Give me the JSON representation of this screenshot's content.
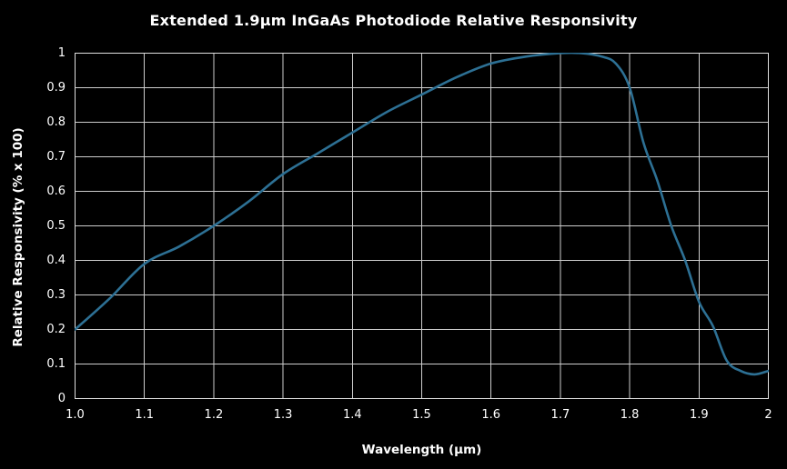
{
  "title": "Extended 1.9µm InGaAs Photodiode Relative Responsivity",
  "chart_data": {
    "type": "line",
    "title": "Extended 1.9µm InGaAs Photodiode Relative Responsivity",
    "xlabel": "Wavelength (µm)",
    "ylabel": "Relative Responsivity (% x 100)",
    "xlim": [
      1.0,
      2.0
    ],
    "ylim": [
      0,
      1
    ],
    "grid": true,
    "legend": "none",
    "x_ticks": [
      {
        "value": 1.0,
        "label": "1.0"
      },
      {
        "value": 1.1,
        "label": "1.1"
      },
      {
        "value": 1.2,
        "label": "1.2"
      },
      {
        "value": 1.3,
        "label": "1.3"
      },
      {
        "value": 1.4,
        "label": "1.4"
      },
      {
        "value": 1.5,
        "label": "1.5"
      },
      {
        "value": 1.6,
        "label": "1.6"
      },
      {
        "value": 1.7,
        "label": "1.7"
      },
      {
        "value": 1.8,
        "label": "1.8"
      },
      {
        "value": 1.9,
        "label": "1.9"
      },
      {
        "value": 2.0,
        "label": "2"
      }
    ],
    "y_ticks": [
      {
        "value": 0.0,
        "label": "0"
      },
      {
        "value": 0.1,
        "label": "0.1"
      },
      {
        "value": 0.2,
        "label": "0.2"
      },
      {
        "value": 0.3,
        "label": "0.3"
      },
      {
        "value": 0.4,
        "label": "0.4"
      },
      {
        "value": 0.5,
        "label": "0.5"
      },
      {
        "value": 0.6,
        "label": "0.6"
      },
      {
        "value": 0.7,
        "label": "0.7"
      },
      {
        "value": 0.8,
        "label": "0.8"
      },
      {
        "value": 0.9,
        "label": "0.9"
      },
      {
        "value": 1.0,
        "label": "1"
      }
    ],
    "colors": {
      "background": "#000000",
      "text": "#ffffff",
      "grid": "#cdcdcd",
      "frame": "#e0e0e0",
      "line": "#2d7094"
    },
    "series": [
      {
        "name": "Relative Responsivity",
        "points": [
          [
            1.0,
            0.2
          ],
          [
            1.05,
            0.29
          ],
          [
            1.1,
            0.39
          ],
          [
            1.15,
            0.44
          ],
          [
            1.2,
            0.5
          ],
          [
            1.25,
            0.57
          ],
          [
            1.3,
            0.65
          ],
          [
            1.35,
            0.71
          ],
          [
            1.4,
            0.77
          ],
          [
            1.45,
            0.83
          ],
          [
            1.5,
            0.88
          ],
          [
            1.55,
            0.93
          ],
          [
            1.6,
            0.97
          ],
          [
            1.65,
            0.99
          ],
          [
            1.7,
            1.0
          ],
          [
            1.73,
            1.0
          ],
          [
            1.76,
            0.99
          ],
          [
            1.78,
            0.97
          ],
          [
            1.8,
            0.9
          ],
          [
            1.82,
            0.74
          ],
          [
            1.84,
            0.63
          ],
          [
            1.86,
            0.5
          ],
          [
            1.88,
            0.4
          ],
          [
            1.9,
            0.28
          ],
          [
            1.92,
            0.21
          ],
          [
            1.94,
            0.11
          ],
          [
            1.96,
            0.08
          ],
          [
            1.98,
            0.07
          ],
          [
            2.0,
            0.08
          ]
        ]
      }
    ]
  }
}
